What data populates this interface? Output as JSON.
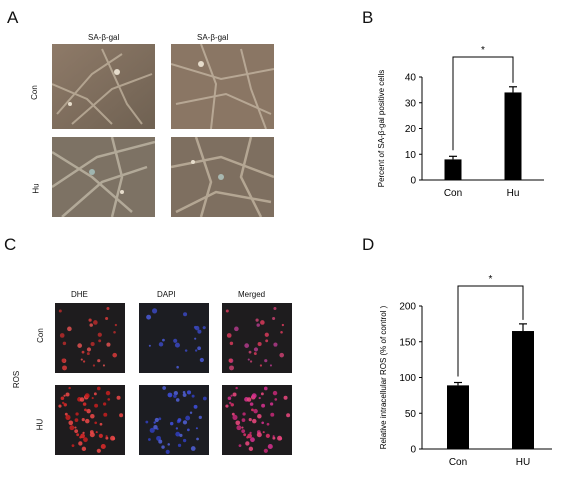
{
  "panel_a": {
    "letter": "A",
    "col_labels": [
      "SA-β-gal",
      "SA-β-gal"
    ],
    "row_labels": [
      "Con",
      "Hu"
    ]
  },
  "panel_b": {
    "letter": "B"
  },
  "panel_c": {
    "letter": "C",
    "col_labels": [
      "DHE",
      "DAPI",
      "Merged"
    ],
    "row_labels": [
      "Con",
      "HU"
    ],
    "side_label": "ROS"
  },
  "panel_d": {
    "letter": "D"
  },
  "chart_data": [
    {
      "type": "bar",
      "categories": [
        "Con",
        "Hu"
      ],
      "values": [
        8,
        34
      ],
      "errors": [
        1.2,
        2.2
      ],
      "ylabel": "Percent of SA-β-gal positive cells",
      "ylim": [
        0,
        40
      ],
      "yticks": [
        0,
        10,
        20,
        30,
        40
      ],
      "significance": "*",
      "bar_color": "#000000"
    },
    {
      "type": "bar",
      "categories": [
        "Con",
        "HU"
      ],
      "values": [
        89,
        165
      ],
      "errors": [
        4,
        10
      ],
      "ylabel": "Relative intracellular ROS (% of control )",
      "ylim": [
        0,
        200
      ],
      "yticks": [
        0,
        50,
        100,
        150,
        200
      ],
      "significance": "*",
      "bar_color": "#000000"
    }
  ]
}
